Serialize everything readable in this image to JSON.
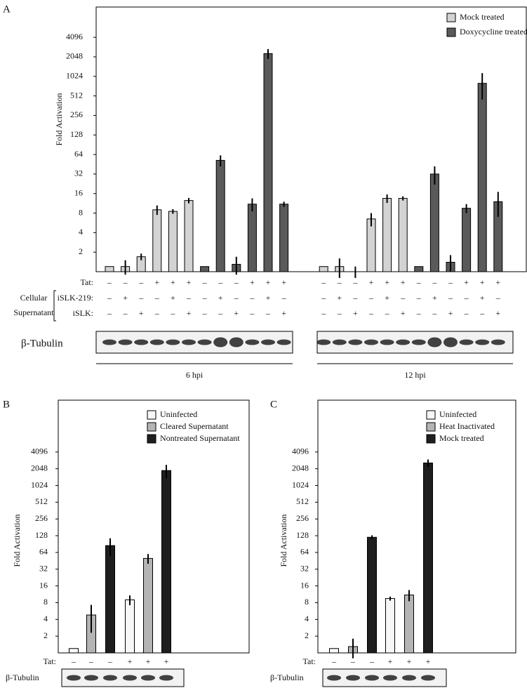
{
  "chart_data": [
    {
      "type": "bar",
      "panel": "A",
      "ylabel": "Fold Activation",
      "log_scale": true,
      "ylim": [
        1,
        12000
      ],
      "yticks": [
        2,
        4,
        8,
        16,
        32,
        64,
        128,
        256,
        512,
        1024,
        2048,
        4096
      ],
      "legend": "upper right",
      "series": [
        {
          "name": "Mock treated",
          "color": "#d3d3d3",
          "values": [
            1.2,
            1.2,
            1.7,
            9,
            8.5,
            12.5,
            null,
            null,
            null,
            null,
            null,
            null,
            1.2,
            1.2,
            1.0,
            6.5,
            13.5,
            13.5,
            null,
            null,
            null,
            null,
            null,
            null
          ],
          "errors": [
            0,
            0.3,
            0.2,
            1.5,
            0.7,
            1.2,
            null,
            null,
            null,
            null,
            null,
            null,
            0,
            0.4,
            0.2,
            1.5,
            2,
            1,
            null,
            null,
            null,
            null,
            null,
            null
          ]
        },
        {
          "name": "Doxycycline treated",
          "color": "#5a5a5a",
          "values": [
            null,
            null,
            null,
            null,
            null,
            null,
            1.2,
            52,
            1.3,
            11,
            2300,
            11,
            null,
            null,
            null,
            null,
            null,
            null,
            1.2,
            32,
            1.4,
            9.5,
            800,
            12
          ],
          "errors": [
            null,
            null,
            null,
            null,
            null,
            null,
            0,
            10,
            0.4,
            2.5,
            400,
            1,
            null,
            null,
            null,
            null,
            null,
            null,
            0,
            10,
            0.4,
            1.5,
            350,
            5
          ]
        }
      ],
      "conditions": [
        {
          "label": "Tat:",
          "values": [
            "–",
            "–",
            "–",
            "+",
            "+",
            "+",
            "–",
            "–",
            "–",
            "+",
            "+",
            "+",
            "–",
            "–",
            "–",
            "+",
            "+",
            "+",
            "–",
            "–",
            "–",
            "+",
            "+",
            "+"
          ]
        },
        {
          "label": "iSLK-219:",
          "values": [
            "–",
            "+",
            "–",
            "–",
            "+",
            "–",
            "–",
            "+",
            "–",
            "–",
            "+",
            "–",
            "–",
            "+",
            "–",
            "–",
            "+",
            "–",
            "–",
            "+",
            "–",
            "–",
            "+",
            "–"
          ]
        },
        {
          "label": "iSLK:",
          "values": [
            "–",
            "–",
            "+",
            "–",
            "–",
            "+",
            "–",
            "–",
            "+",
            "–",
            "–",
            "+",
            "–",
            "–",
            "+",
            "–",
            "–",
            "+",
            "–",
            "–",
            "+",
            "–",
            "–",
            "+"
          ]
        }
      ],
      "side_label": [
        "Cellular",
        "Supernatant"
      ],
      "blot_label": "β-Tubulin",
      "groups": [
        "6 hpi",
        "12 hpi"
      ]
    },
    {
      "type": "bar",
      "panel": "B",
      "ylabel": "Fold Activation",
      "log_scale": true,
      "ylim": [
        1,
        35000
      ],
      "yticks": [
        2,
        4,
        8,
        16,
        32,
        64,
        128,
        256,
        512,
        1024,
        2048,
        4096
      ],
      "legend": "upper right",
      "series": [
        {
          "name": "Uninfected",
          "color": "#f7f7f7",
          "values": [
            1.2,
            null,
            null,
            9,
            null,
            null
          ],
          "errors": [
            0,
            null,
            null,
            1.8,
            null,
            null
          ]
        },
        {
          "name": "Cleared Supernatant",
          "color": "#b4b4b4",
          "values": [
            null,
            4.8,
            null,
            null,
            50,
            null
          ],
          "errors": [
            null,
            2.5,
            null,
            null,
            10,
            null
          ]
        },
        {
          "name": "Nontreated Supernatant",
          "color": "#1e1e1e",
          "values": [
            null,
            null,
            85,
            null,
            null,
            1900
          ],
          "errors": [
            null,
            null,
            30,
            null,
            null,
            500
          ]
        }
      ],
      "conditions": [
        {
          "label": "Tat:",
          "values": [
            "–",
            "–",
            "–",
            "+",
            "+",
            "+"
          ]
        }
      ],
      "blot_label": "β-Tubulin"
    },
    {
      "type": "bar",
      "panel": "C",
      "ylabel": "Fold Activation",
      "log_scale": true,
      "ylim": [
        1,
        35000
      ],
      "yticks": [
        2,
        4,
        8,
        16,
        32,
        64,
        128,
        256,
        512,
        1024,
        2048,
        4096
      ],
      "legend": "upper right",
      "series": [
        {
          "name": "Uninfected",
          "color": "#f7f7f7",
          "values": [
            1.2,
            null,
            null,
            9.5,
            null,
            null
          ],
          "errors": [
            0,
            null,
            null,
            0.8,
            null,
            null
          ]
        },
        {
          "name": "Heat Inactivated",
          "color": "#b4b4b4",
          "values": [
            null,
            1.3,
            null,
            null,
            11,
            null
          ],
          "errors": [
            null,
            0.5,
            null,
            null,
            2.5,
            null
          ]
        },
        {
          "name": "Mock treated",
          "color": "#1e1e1e",
          "values": [
            null,
            null,
            120,
            null,
            null,
            2600
          ],
          "errors": [
            null,
            null,
            10,
            null,
            null,
            400
          ]
        }
      ],
      "conditions": [
        {
          "label": "Tat:",
          "values": [
            "–",
            "–",
            "–",
            "+",
            "+",
            "+"
          ]
        }
      ],
      "blot_label": "β-Tubulin"
    }
  ]
}
